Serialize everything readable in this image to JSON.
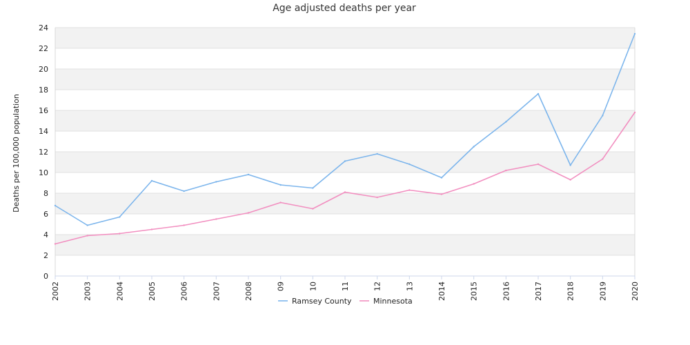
{
  "chart_data": {
    "type": "line",
    "title": "Age adjusted deaths per year",
    "xlabel": "",
    "ylabel": "Deaths per 100,000 population",
    "categories": [
      "2002",
      "2003",
      "2004",
      "2005",
      "2006",
      "2007",
      "2008",
      "09",
      "10",
      "11",
      "12",
      "13",
      "2014",
      "2015",
      "2016",
      "2017",
      "2018",
      "2019",
      "2020"
    ],
    "ylim": [
      0,
      24
    ],
    "yticks": [
      0,
      2,
      4,
      6,
      8,
      10,
      12,
      14,
      16,
      18,
      20,
      22,
      24
    ],
    "grid": "horizontal bands",
    "legend_position": "bottom",
    "series": [
      {
        "name": "Ramsey County",
        "color": "#7cb5ec",
        "values": [
          6.8,
          4.9,
          5.7,
          9.2,
          8.2,
          9.1,
          9.8,
          8.8,
          8.5,
          11.1,
          11.8,
          10.8,
          9.5,
          12.5,
          14.9,
          17.6,
          10.7,
          15.5,
          23.4
        ]
      },
      {
        "name": "Minnesota",
        "color": "#f28fc0",
        "values": [
          3.1,
          3.9,
          4.1,
          4.5,
          4.9,
          5.5,
          6.1,
          7.1,
          6.5,
          8.1,
          7.6,
          8.3,
          7.9,
          8.9,
          10.2,
          10.8,
          9.3,
          11.3,
          15.8
        ]
      }
    ]
  }
}
